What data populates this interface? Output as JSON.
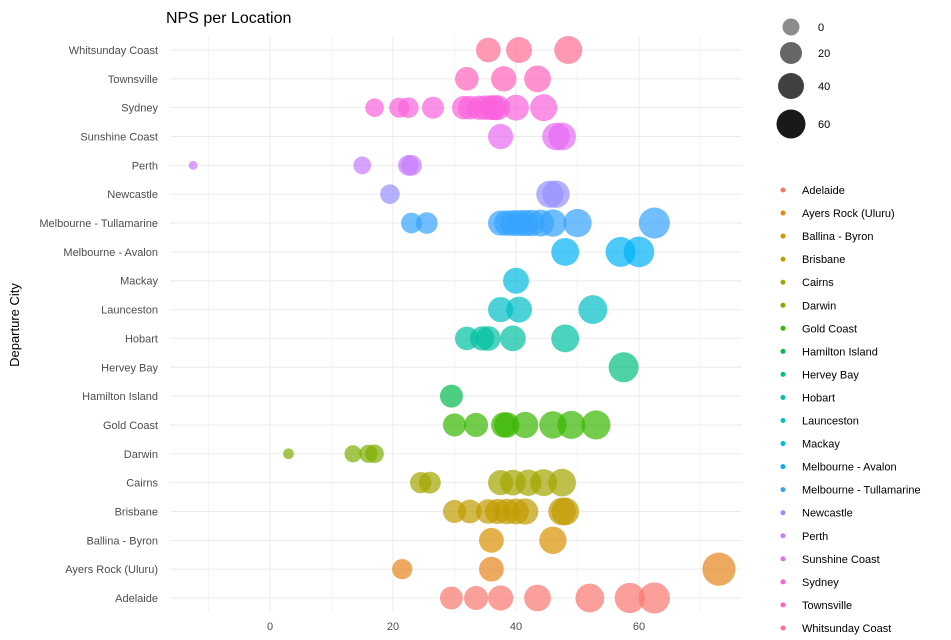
{
  "chart_data": {
    "type": "scatter",
    "title": "NPS per Location",
    "xlabel": "",
    "ylabel": "Departure City",
    "xlim": [
      -15,
      76
    ],
    "x_ticks": [
      "0",
      "20",
      "40",
      "60"
    ],
    "x_tick_values": [
      0,
      20,
      40,
      60
    ],
    "grid": true,
    "legend_position": "right",
    "size_legend": {
      "labels": [
        "0",
        "20",
        "40",
        "60"
      ],
      "values": [
        0,
        20,
        40,
        60
      ],
      "color": "#000000"
    },
    "categories": [
      "Adelaide",
      "Ayers Rock (Uluru)",
      "Ballina - Byron",
      "Brisbane",
      "Cairns",
      "Darwin",
      "Gold Coast",
      "Hamilton Island",
      "Hervey Bay",
      "Hobart",
      "Launceston",
      "Mackay",
      "Melbourne - Avalon",
      "Melbourne - Tullamarine",
      "Newcastle",
      "Perth",
      "Sunshine Coast",
      "Sydney",
      "Townsville",
      "Whitsunday Coast"
    ],
    "series": [
      {
        "name": "Adelaide",
        "color": "#F8766D",
        "x": [
          29.5,
          33.5,
          37.5,
          43.5,
          52,
          58.5,
          62.5
        ]
      },
      {
        "name": "Ayers Rock (Uluru)",
        "color": "#E7851E",
        "x": [
          21.5,
          36,
          73
        ]
      },
      {
        "name": "Ballina - Byron",
        "color": "#D89000",
        "x": [
          36,
          46
        ]
      },
      {
        "name": "Brisbane",
        "color": "#C09B00",
        "x": [
          30,
          32.5,
          35.5,
          37,
          38.5,
          40,
          41.5,
          47.5,
          48
        ]
      },
      {
        "name": "Cairns",
        "color": "#A3A500",
        "x": [
          24.5,
          26,
          37.5,
          39.5,
          42,
          44.5,
          47.5
        ]
      },
      {
        "name": "Darwin",
        "color": "#7CAE00",
        "x": [
          3,
          13.5,
          16,
          17
        ]
      },
      {
        "name": "Gold Coast",
        "color": "#39B600",
        "x": [
          30,
          33.5,
          38,
          38.5,
          41.5,
          46,
          49,
          53
        ]
      },
      {
        "name": "Hamilton Island",
        "color": "#00BB4E",
        "x": [
          29.5
        ]
      },
      {
        "name": "Hervey Bay",
        "color": "#00BF7D",
        "x": [
          57.5
        ]
      },
      {
        "name": "Hobart",
        "color": "#00C1A3",
        "x": [
          32,
          34.5,
          35.5,
          39.5,
          48
        ]
      },
      {
        "name": "Launceston",
        "color": "#00BFC4",
        "x": [
          37.5,
          40.5,
          52.5
        ]
      },
      {
        "name": "Mackay",
        "color": "#00BAE0",
        "x": [
          40
        ]
      },
      {
        "name": "Melbourne - Avalon",
        "color": "#00B0F6",
        "x": [
          48,
          57,
          60
        ]
      },
      {
        "name": "Melbourne - Tullamarine",
        "color": "#35A2FF",
        "x": [
          23,
          25.5,
          37.5,
          38.5,
          39.5,
          40.5,
          41.5,
          42.5,
          44,
          46,
          50,
          62.5
        ]
      },
      {
        "name": "Newcastle",
        "color": "#9590FF",
        "x": [
          19.5,
          45.5,
          46.5
        ]
      },
      {
        "name": "Perth",
        "color": "#C77CFF",
        "x": [
          -12.5,
          15,
          22.5,
          23
        ]
      },
      {
        "name": "Sunshine Coast",
        "color": "#E76BF3",
        "x": [
          37.5,
          46.5,
          47.5
        ]
      },
      {
        "name": "Sydney",
        "color": "#FA62DB",
        "x": [
          17,
          21,
          22.5,
          26.5,
          31.5,
          32.5,
          34,
          35,
          36,
          36.5,
          37,
          40,
          44.5
        ]
      },
      {
        "name": "Townsville",
        "color": "#FF62BC",
        "x": [
          32,
          38,
          43.5
        ]
      },
      {
        "name": "Whitsunday Coast",
        "color": "#FF6C91",
        "x": [
          35.5,
          40.5,
          48.5
        ]
      }
    ]
  }
}
